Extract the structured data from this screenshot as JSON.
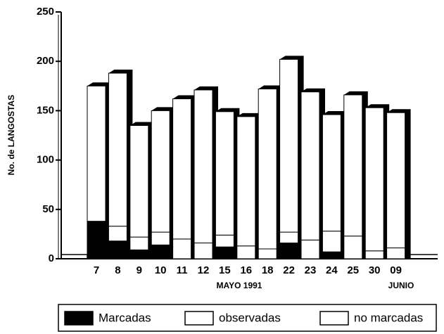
{
  "chart_data": {
    "type": "stacked_bar",
    "y_label": "No. de LANGOSTAS",
    "categories": [
      "7",
      "8",
      "9",
      "10",
      "11",
      "12",
      "15",
      "16",
      "18",
      "22",
      "23",
      "24",
      "25",
      "30",
      "09"
    ],
    "category_groups": [
      "MAYO 1991",
      "JUNIO"
    ],
    "series": [
      {
        "name": "Marcadas",
        "color": "#000000",
        "values": [
          38,
          18,
          9,
          14,
          0,
          0,
          12,
          0,
          0,
          16,
          0,
          7,
          0,
          0,
          0
        ]
      },
      {
        "name": "observadas",
        "color": "#ffffff",
        "values": [
          0,
          15,
          13,
          13,
          20,
          16,
          12,
          13,
          10,
          11,
          19,
          21,
          23,
          8,
          11
        ]
      },
      {
        "name": "no marcadas",
        "color": "#ffffff",
        "values": [
          137,
          155,
          113,
          123,
          142,
          155,
          125,
          131,
          162,
          175,
          150,
          118,
          143,
          145,
          137
        ]
      }
    ],
    "ylim": [
      0,
      250
    ],
    "yticks": [
      0,
      50,
      100,
      150,
      200,
      250
    ],
    "grid": false,
    "legend": "bottom"
  }
}
